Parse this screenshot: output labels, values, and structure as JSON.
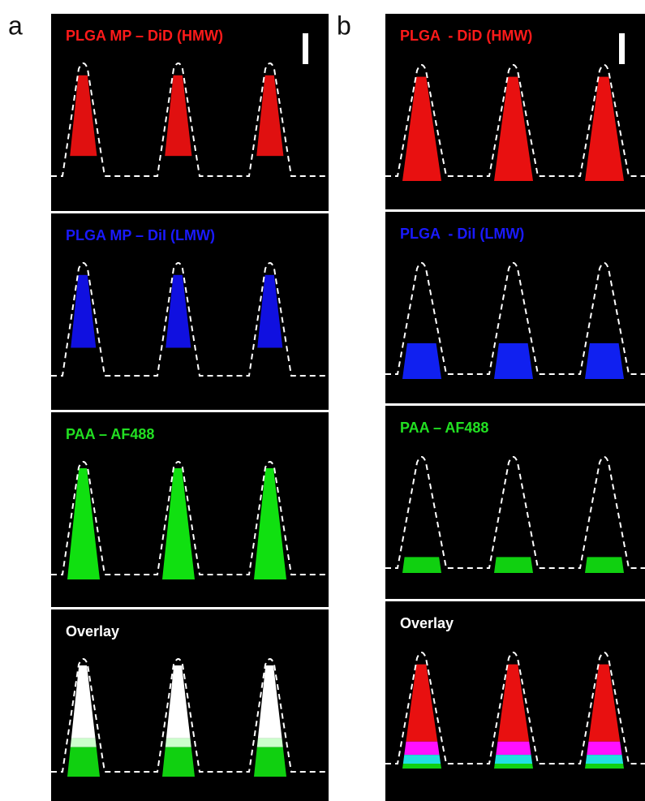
{
  "panels": [
    {
      "letter": "a",
      "images": [
        {
          "label": "PLGA MP – DiD (HMW)",
          "color": "#ff1a1a"
        },
        {
          "label": "PLGA MP – DiI (LMW)",
          "color": "#1a1aff"
        },
        {
          "label": "PAA – AF488",
          "color": "#22e022"
        },
        {
          "label": "Overlay",
          "color": "#ffffff"
        }
      ]
    },
    {
      "letter": "b",
      "images": [
        {
          "label": "PLGA  - DiD (HMW)",
          "color": "#ff1a1a"
        },
        {
          "label": "PLGA  - DiI (LMW)",
          "color": "#1a1aff"
        },
        {
          "label": "PAA – AF488",
          "color": "#22e022"
        },
        {
          "label": "Overlay",
          "color": "#ffffff"
        }
      ]
    }
  ]
}
